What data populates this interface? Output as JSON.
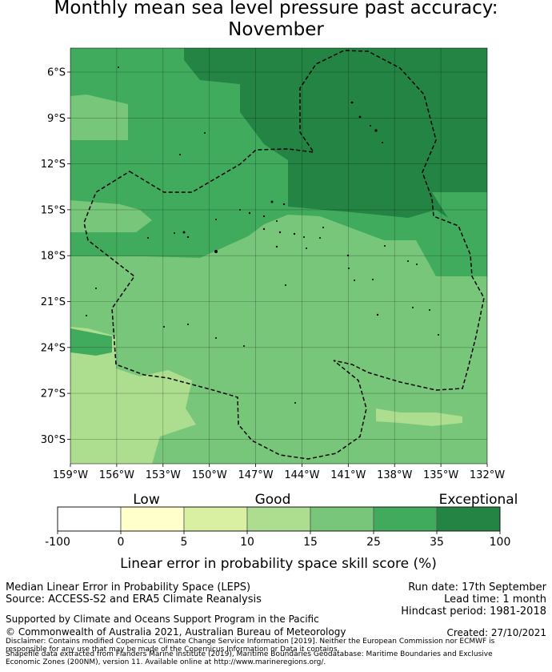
{
  "title_line1": "Monthly mean sea level pressure past accuracy:",
  "title_line2": "November",
  "axes": {
    "lat_labels": [
      "6°S",
      "9°S",
      "12°S",
      "15°S",
      "18°S",
      "21°S",
      "24°S",
      "27°S",
      "30°S"
    ],
    "lon_labels": [
      "159°W",
      "156°W",
      "153°W",
      "150°W",
      "147°W",
      "144°W",
      "141°W",
      "138°W",
      "135°W",
      "132°W"
    ]
  },
  "colorbar": {
    "categories": [
      "Low",
      "Good",
      "Exceptional"
    ],
    "tick_labels": [
      "-100",
      "0",
      "5",
      "10",
      "15",
      "25",
      "35",
      "100"
    ],
    "colors": [
      "#ffffff",
      "#ffffcc",
      "#d9f0a3",
      "#addd8e",
      "#78c679",
      "#41ab5d",
      "#238443"
    ],
    "title": "Linear error in probability space skill score (%)"
  },
  "footer": {
    "left_line1": "Median Linear Error in Probability Space (LEPS)",
    "left_line2": "Source: ACCESS-S2 and ERA5 Climate Reanalysis",
    "run_date": "Run date: 17th September",
    "lead_time": "Lead time: 1 month",
    "hindcast": "Hindcast period: 1981-2018",
    "supported": "Supported by Climate and Oceans Support Program in the Pacific",
    "copyright": "© Commonwealth of Australia 2021, Australian Bureau of Meteorology",
    "created": "Created: 27/10/2021",
    "disclaimer": "Disclaimer: Contains modified Copernicus Climate Change Service Information [2019]. Neither the European Commission nor ECMWF is responsible for any use that may be made of the Copernicus Information or Data it contains.",
    "shapefile": "Shapefile data extracted from Flanders Marine Institute (2019), Maritime Boundaries Geodatabase: Maritime Boundaries and Exclusive Economic Zones (200NM), version 11. Available online at http://www.marineregions.org/."
  }
}
